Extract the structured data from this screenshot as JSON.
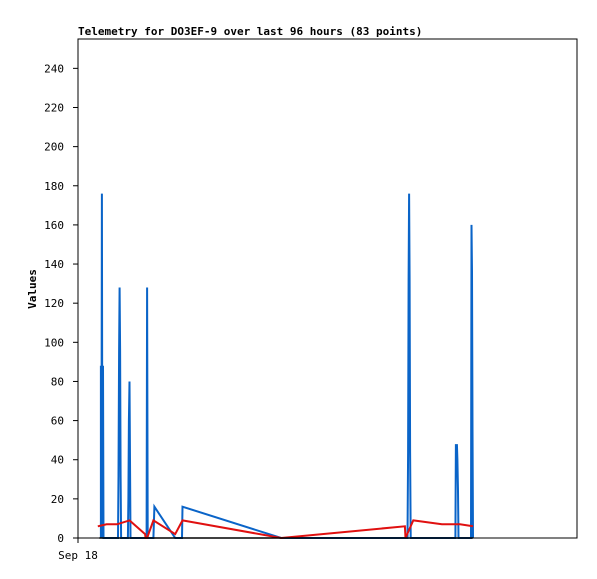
{
  "chart_data": {
    "type": "line",
    "title": "Telemetry for DO3EF-9 over last 96 hours (83 points)",
    "ylabel": "Values",
    "xlabel": "",
    "x_tick_labels": [
      {
        "x": 0,
        "label": "Sep 18"
      }
    ],
    "xlim": [
      0,
      96
    ],
    "ylim": [
      0,
      255
    ],
    "y_ticks": [
      0,
      20,
      40,
      60,
      80,
      100,
      120,
      140,
      160,
      180,
      200,
      220,
      240
    ],
    "grid": false,
    "legend": "none",
    "series": [
      {
        "color": "#0a64c8",
        "points": [
          [
            4.4,
            0
          ],
          [
            4.4,
            88
          ],
          [
            4.5,
            0
          ],
          [
            4.6,
            176
          ],
          [
            4.7,
            0
          ],
          [
            4.8,
            88
          ],
          [
            4.9,
            0
          ],
          [
            7.7,
            0
          ],
          [
            7.8,
            32
          ],
          [
            7.9,
            96
          ],
          [
            8.0,
            128
          ],
          [
            8.1,
            96
          ],
          [
            8.2,
            32
          ],
          [
            8.3,
            0
          ],
          [
            9.6,
            0
          ],
          [
            9.7,
            20
          ],
          [
            9.8,
            60
          ],
          [
            9.9,
            80
          ],
          [
            10.0,
            40
          ],
          [
            10.1,
            0
          ],
          [
            13.2,
            0
          ],
          [
            13.3,
            128
          ],
          [
            13.4,
            0
          ],
          [
            14.5,
            0
          ],
          [
            14.7,
            16
          ],
          [
            18.7,
            0
          ],
          [
            20.0,
            0
          ],
          [
            20.1,
            16
          ],
          [
            39.1,
            0
          ],
          [
            63.4,
            0
          ],
          [
            63.5,
            44
          ],
          [
            63.6,
            132
          ],
          [
            63.7,
            176
          ],
          [
            63.8,
            132
          ],
          [
            63.9,
            44
          ],
          [
            64.0,
            0
          ],
          [
            72.6,
            0
          ],
          [
            72.7,
            48
          ],
          [
            72.8,
            36
          ],
          [
            72.9,
            48
          ],
          [
            73.0,
            40
          ],
          [
            73.1,
            24
          ],
          [
            73.2,
            0
          ],
          [
            75.6,
            0
          ],
          [
            75.7,
            160
          ],
          [
            75.8,
            136
          ],
          [
            75.9,
            56
          ],
          [
            76.0,
            0
          ]
        ]
      },
      {
        "color": "#e01010",
        "points": [
          [
            3.8,
            6
          ],
          [
            5.5,
            7
          ],
          [
            7.5,
            7
          ],
          [
            9.9,
            9
          ],
          [
            12.9,
            2
          ],
          [
            13.0,
            0
          ],
          [
            13.3,
            0
          ],
          [
            14.5,
            9
          ],
          [
            18.7,
            2
          ],
          [
            20.1,
            9
          ],
          [
            39.1,
            0
          ],
          [
            62.9,
            6
          ],
          [
            63.0,
            0
          ],
          [
            64.5,
            9
          ],
          [
            70.0,
            7
          ],
          [
            73.5,
            7
          ],
          [
            76.0,
            6
          ]
        ]
      },
      {
        "color": "#000000",
        "points": [
          [
            4.1,
            0
          ],
          [
            76.0,
            0
          ]
        ]
      }
    ]
  }
}
